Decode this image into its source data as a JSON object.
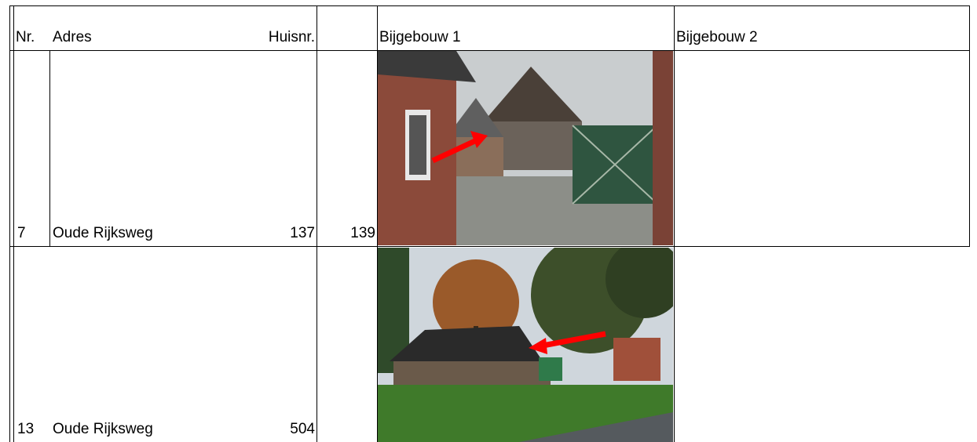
{
  "table": {
    "header": {
      "nr": "Nr.",
      "adres": "Adres",
      "huisnr": "Huisnr.",
      "bijgebouw1": "Bijgebouw 1",
      "bijgebouw2": "Bijgebouw 2"
    },
    "rows": [
      {
        "nr": "7",
        "adres": "Oude Rijksweg",
        "huisnr": "137",
        "extra": "139"
      },
      {
        "nr": "13",
        "adres": "Oude Rijksweg",
        "huisnr": "504"
      }
    ]
  }
}
